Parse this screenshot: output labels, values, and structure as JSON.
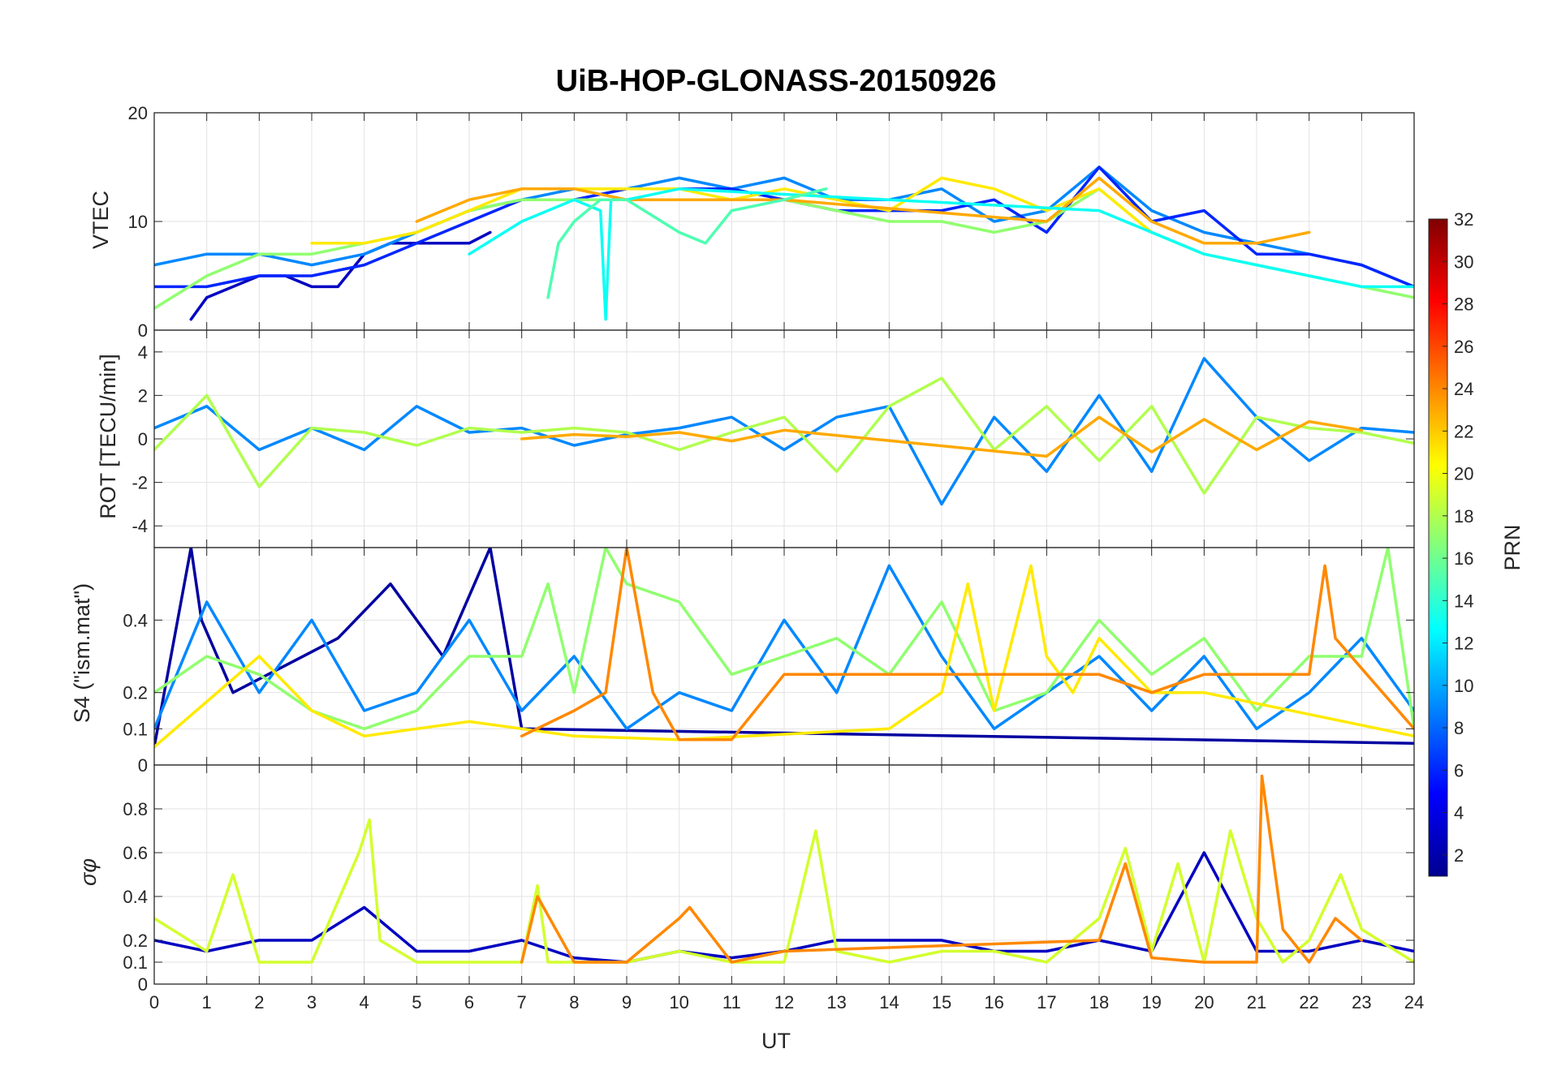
{
  "chart_data": {
    "type": "line",
    "title": "UiB-HOP-GLONASS-20150926",
    "xlabel": "UT",
    "xlim": [
      0,
      24
    ],
    "xticks": [
      "0",
      "1",
      "2",
      "3",
      "4",
      "5",
      "6",
      "7",
      "8",
      "9",
      "10",
      "11",
      "12",
      "13",
      "14",
      "15",
      "16",
      "17",
      "18",
      "19",
      "20",
      "21",
      "22",
      "23",
      "24"
    ],
    "colorbar": {
      "label": "PRN",
      "range": [
        1,
        32
      ],
      "ticks": [
        "2",
        "4",
        "6",
        "8",
        "10",
        "12",
        "14",
        "16",
        "18",
        "20",
        "22",
        "24",
        "26",
        "28",
        "30",
        "32"
      ]
    },
    "panels": [
      {
        "ylabel": "VTEC",
        "ylim": [
          0,
          20
        ],
        "yticks": [
          "0",
          "10",
          "20"
        ],
        "series": [
          {
            "prn": 3,
            "x": [
              0.7,
              1.0,
              1.5,
              2.0,
              2.5,
              3.0,
              3.5,
              4.0,
              4.5,
              5.0,
              5.5,
              6.0,
              6.4
            ],
            "y": [
              1,
              3,
              4,
              5,
              5,
              4,
              4,
              7,
              8,
              8,
              8,
              8,
              9
            ]
          },
          {
            "prn": 9,
            "x": [
              0.0,
              1.0,
              2.0,
              3.0,
              4.0,
              5.0,
              6.0,
              7.0,
              8.0,
              9.0,
              10.0,
              11.0,
              12.0,
              13.0,
              14.0,
              15.0,
              16.0,
              17.0,
              18.0,
              19.0,
              20.0,
              21.0,
              22.0,
              23.0,
              24.0
            ],
            "y": [
              6,
              7,
              7,
              6,
              7,
              9,
              11,
              12,
              13,
              13,
              14,
              13,
              14,
              12,
              12,
              13,
              10,
              11,
              15,
              11,
              9,
              8,
              7,
              6,
              4
            ]
          },
          {
            "prn": 6,
            "x": [
              0.0,
              1.0,
              2.0,
              3.0,
              4.0,
              5.0,
              6.0,
              7.0,
              8.0,
              9.0,
              10.0,
              11.0,
              12.0,
              13.0,
              14.0,
              15.0,
              16.0,
              17.0,
              18.0,
              19.0,
              20.0,
              21.0,
              22.0,
              23.0,
              24.0
            ],
            "y": [
              4,
              4,
              5,
              5,
              6,
              8,
              10,
              12,
              12,
              13,
              13,
              13,
              12,
              11,
              11,
              11,
              12,
              9,
              15,
              10,
              11,
              7,
              7,
              6,
              4
            ]
          },
          {
            "prn": 17,
            "x": [
              0.0,
              1.0,
              2.0,
              3.0,
              4.0,
              5.0,
              6.0,
              7.0,
              8.0,
              9.0,
              10.0,
              11.0,
              12.0,
              13.0,
              14.0,
              15.0,
              16.0,
              17.0,
              18.0,
              19.0,
              20.0,
              21.0,
              22.0,
              23.0,
              24.0
            ],
            "y": [
              2,
              5,
              7,
              7,
              8,
              9,
              11,
              12,
              12,
              12,
              12,
              12,
              12,
              11,
              10,
              10,
              9,
              10,
              13,
              9,
              7,
              6,
              5,
              4,
              3
            ]
          },
          {
            "prn": 21,
            "x": [
              3.0,
              4.0,
              5.0,
              6.0,
              7.0,
              8.0,
              9.0,
              10.0,
              11.0,
              12.0,
              13.0,
              14.0,
              15.0,
              16.0,
              17.0,
              18.0,
              19.0
            ],
            "y": [
              8,
              8,
              9,
              11,
              13,
              13,
              13,
              13,
              12,
              13,
              12,
              11,
              14,
              13,
              11,
              13,
              9
            ]
          },
          {
            "prn": 23,
            "x": [
              5.0,
              6.0,
              7.0,
              8.0,
              9.0,
              10.0,
              11.0,
              12.0,
              17.0,
              18.0,
              19.0,
              20.0,
              21.0,
              22.0
            ],
            "y": [
              10,
              12,
              13,
              13,
              12,
              12,
              12,
              12,
              10,
              14,
              10,
              8,
              8,
              9
            ]
          },
          {
            "prn": 13,
            "x": [
              6.0,
              7.0,
              8.0,
              8.5,
              8.6,
              8.7,
              9.0,
              10.0,
              18.0,
              19.0,
              20.0,
              21.0,
              22.0,
              23.0,
              24.0
            ],
            "y": [
              7,
              10,
              12,
              11,
              1,
              12,
              12,
              13,
              11,
              9,
              7,
              6,
              5,
              4,
              4
            ]
          },
          {
            "prn": 15,
            "x": [
              7.5,
              7.7,
              8.0,
              8.5,
              9.0,
              10.0,
              10.5,
              11.0,
              12.0,
              12.8
            ],
            "y": [
              3,
              8,
              10,
              12,
              12,
              9,
              8,
              11,
              12,
              13
            ]
          }
        ]
      },
      {
        "ylabel": "ROT [TECU/min]",
        "ylim": [
          -5,
          5
        ],
        "yticks": [
          "-4",
          "-2",
          "0",
          "2",
          "4"
        ],
        "series": [
          {
            "prn": 9,
            "x": [
              0,
              1,
              2,
              3,
              4,
              5,
              6,
              7,
              8,
              9,
              10,
              11,
              12,
              13,
              14,
              15,
              16,
              17,
              18,
              19,
              20,
              21,
              22,
              23,
              24
            ],
            "y": [
              0.5,
              1.5,
              -0.5,
              0.5,
              -0.5,
              1.5,
              0.3,
              0.5,
              -0.3,
              0.2,
              0.5,
              1,
              -0.5,
              1,
              1.5,
              -3,
              1,
              -1.5,
              2,
              -1.5,
              3.7,
              1,
              -1,
              0.5,
              0.3
            ]
          },
          {
            "prn": 18,
            "x": [
              0,
              1,
              2,
              3,
              4,
              5,
              6,
              7,
              8,
              9,
              10,
              11,
              12,
              13,
              14,
              15,
              16,
              17,
              18,
              19,
              20,
              21,
              22,
              23,
              24
            ],
            "y": [
              -0.5,
              2,
              -2.2,
              0.5,
              0.3,
              -0.3,
              0.5,
              0.3,
              0.5,
              0.3,
              -0.5,
              0.3,
              1,
              -1.5,
              1.5,
              2.8,
              -0.5,
              1.5,
              -1,
              1.5,
              -2.5,
              1,
              0.5,
              0.3,
              -0.2
            ]
          },
          {
            "prn": 23,
            "x": [
              7,
              8,
              9,
              10,
              11,
              12,
              17,
              18,
              19,
              20,
              21,
              22,
              23
            ],
            "y": [
              0,
              0.2,
              0.1,
              0.3,
              -0.1,
              0.4,
              -0.8,
              1,
              -0.6,
              0.9,
              -0.5,
              0.8,
              0.4
            ]
          }
        ]
      },
      {
        "ylabel": "S4 (\"ism.mat\")",
        "ylim": [
          0,
          0.6
        ],
        "yticks": [
          "0",
          "0.1",
          "0.2",
          "0.4"
        ],
        "series": [
          {
            "prn": 2,
            "x": [
              0,
              0.7,
              0.9,
              1.5,
              3.5,
              4.5,
              5.5,
              6.4,
              7,
              24
            ],
            "y": [
              0.05,
              0.6,
              0.4,
              0.2,
              0.35,
              0.5,
              0.3,
              0.6,
              0.1,
              0.06
            ]
          },
          {
            "prn": 9,
            "x": [
              0,
              1,
              2,
              3,
              4,
              5,
              6,
              7,
              8,
              9,
              10,
              11,
              12,
              13,
              14,
              15,
              16,
              17,
              18,
              19,
              20,
              21,
              22,
              23,
              24
            ],
            "y": [
              0.1,
              0.45,
              0.2,
              0.4,
              0.15,
              0.2,
              0.4,
              0.15,
              0.3,
              0.1,
              0.2,
              0.15,
              0.4,
              0.2,
              0.55,
              0.3,
              0.1,
              0.2,
              0.3,
              0.15,
              0.3,
              0.1,
              0.2,
              0.35,
              0.15
            ]
          },
          {
            "prn": 17,
            "x": [
              0,
              1,
              2,
              3,
              4,
              5,
              6,
              7,
              7.5,
              8,
              8.6,
              9,
              10,
              11,
              12,
              13,
              14,
              15,
              16,
              17,
              18,
              19,
              20,
              21,
              22,
              23,
              23.5,
              24
            ],
            "y": [
              0.2,
              0.3,
              0.25,
              0.15,
              0.1,
              0.15,
              0.3,
              0.3,
              0.5,
              0.2,
              0.6,
              0.5,
              0.45,
              0.25,
              0.3,
              0.35,
              0.25,
              0.45,
              0.15,
              0.2,
              0.4,
              0.25,
              0.35,
              0.15,
              0.3,
              0.3,
              0.6,
              0.1
            ]
          },
          {
            "prn": 21,
            "x": [
              0,
              2,
              3,
              4,
              5,
              6,
              7,
              8,
              10,
              14,
              15,
              15.5,
              16,
              16.7,
              17,
              17.5,
              18,
              19,
              20,
              24
            ],
            "y": [
              0.05,
              0.3,
              0.15,
              0.08,
              0.1,
              0.12,
              0.1,
              0.08,
              0.07,
              0.1,
              0.2,
              0.5,
              0.15,
              0.55,
              0.3,
              0.2,
              0.35,
              0.2,
              0.2,
              0.08
            ]
          },
          {
            "prn": 24,
            "x": [
              7,
              8,
              8.6,
              9,
              9.5,
              10,
              11,
              12,
              18,
              19,
              20,
              21,
              21.5,
              22,
              22.3,
              22.5,
              24
            ],
            "y": [
              0.08,
              0.15,
              0.2,
              0.6,
              0.2,
              0.07,
              0.07,
              0.25,
              0.25,
              0.2,
              0.25,
              0.25,
              0.25,
              0.25,
              0.55,
              0.35,
              0.1
            ]
          }
        ]
      },
      {
        "ylabel": "σφ",
        "ylim": [
          0,
          1
        ],
        "yticks": [
          "0",
          "0.1",
          "0.2",
          "0.4",
          "0.6",
          "0.8"
        ],
        "series": [
          {
            "prn": 3,
            "x": [
              0,
              1,
              2,
              3,
              4,
              5,
              6,
              7,
              8,
              9,
              10,
              11,
              12,
              13,
              14,
              15,
              16,
              17,
              18,
              19,
              20,
              21,
              22,
              23,
              24
            ],
            "y": [
              0.2,
              0.15,
              0.2,
              0.2,
              0.35,
              0.15,
              0.15,
              0.2,
              0.12,
              0.1,
              0.15,
              0.12,
              0.15,
              0.2,
              0.2,
              0.2,
              0.15,
              0.15,
              0.2,
              0.15,
              0.6,
              0.15,
              0.15,
              0.2,
              0.15
            ]
          },
          {
            "prn": 19,
            "x": [
              0,
              1,
              1.5,
              2,
              3,
              3.9,
              4.1,
              4.3,
              5,
              6,
              7,
              7.3,
              7.5,
              8,
              9,
              10,
              11,
              12,
              12.6,
              13,
              14,
              15,
              16,
              17,
              18,
              18.5,
              19,
              19.5,
              20,
              20.5,
              21,
              21.5,
              22,
              22.6,
              23,
              24
            ],
            "y": [
              0.3,
              0.15,
              0.5,
              0.1,
              0.1,
              0.6,
              0.75,
              0.2,
              0.1,
              0.1,
              0.1,
              0.45,
              0.1,
              0.1,
              0.1,
              0.15,
              0.1,
              0.1,
              0.7,
              0.15,
              0.1,
              0.15,
              0.15,
              0.1,
              0.3,
              0.62,
              0.15,
              0.55,
              0.1,
              0.7,
              0.3,
              0.1,
              0.2,
              0.5,
              0.25,
              0.1
            ]
          },
          {
            "prn": 24,
            "x": [
              7,
              7.3,
              8,
              9,
              10,
              10.2,
              11,
              12,
              18,
              18.5,
              19,
              20,
              20.5,
              21,
              21.1,
              21.5,
              22,
              22.5,
              23
            ],
            "y": [
              0.1,
              0.4,
              0.1,
              0.1,
              0.3,
              0.35,
              0.1,
              0.15,
              0.2,
              0.55,
              0.12,
              0.1,
              0.1,
              0.1,
              0.95,
              0.25,
              0.1,
              0.3,
              0.2
            ]
          }
        ]
      }
    ]
  }
}
